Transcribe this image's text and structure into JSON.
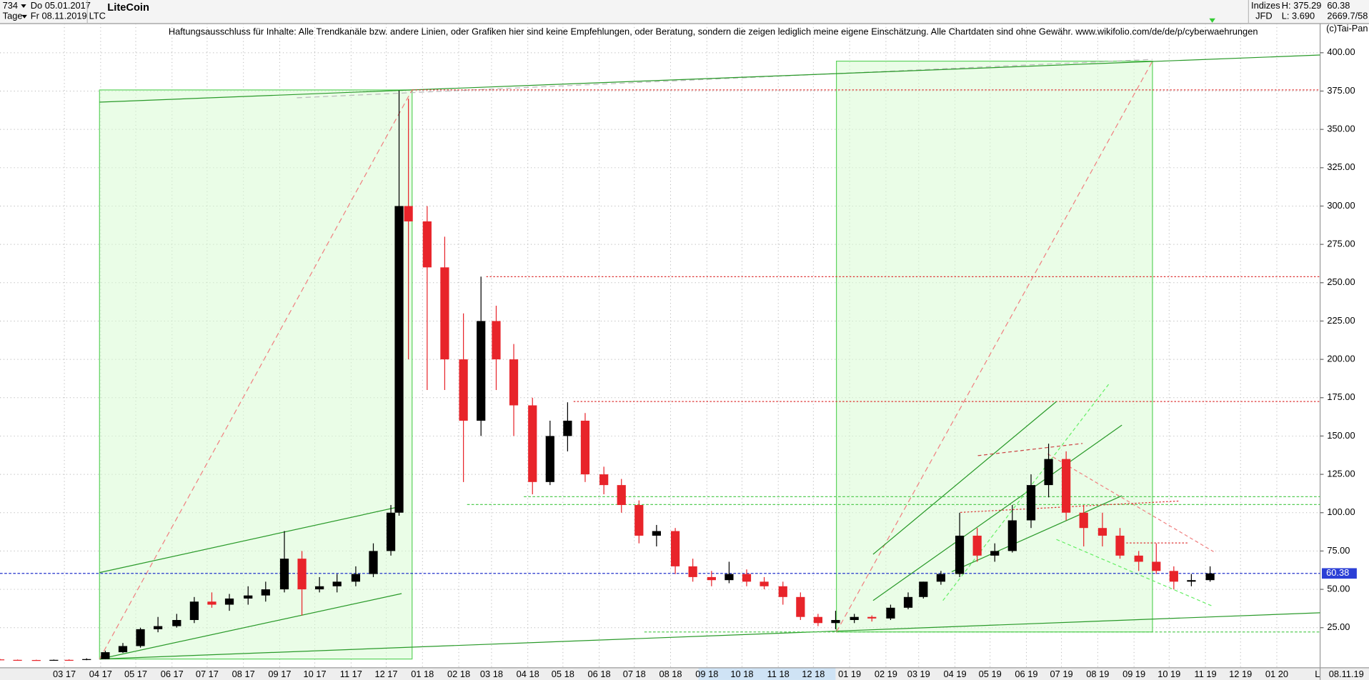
{
  "header": {
    "count": "734",
    "start": "Do 05.01.2017",
    "period": "Tage",
    "end": "Fr 08.11.2019",
    "title": "LiteCoin",
    "symbol": "LTC",
    "disclaimer": "Haftungsausschluss für Inhalte: Alle Trendkanäle bzw. andere Linien, oder Grafiken hier sind keine Empfehlungen, oder Beratung, sondern die zeigen lediglich meine eigene Einschätzung. Alle Chartdaten sind ohne Gewähr.  www.wikifolio.com/de/de/p/cyberwaehrungen",
    "market": "Indizes",
    "exchange": "JFD",
    "high": "H: 375.29",
    "low": "L: 3.690",
    "last": "60.38",
    "volume": "2669.7/58",
    "copyright": "(c)Tai-Pan",
    "scale_mode": "L",
    "end_date": "08.11.19"
  },
  "chart_data": {
    "type": "candlestick",
    "last_price": {
      "value": 60.38,
      "label": "60.38"
    },
    "xlim": [
      "2017-01-05",
      "2020-02-07"
    ],
    "ylim": [
      0,
      419
    ],
    "xticks": [
      {
        "value": "2017-03-01",
        "label": "03 17"
      },
      {
        "value": "2017-04-01",
        "label": "04 17"
      },
      {
        "value": "2017-05-01",
        "label": "05 17"
      },
      {
        "value": "2017-06-01",
        "label": "06 17"
      },
      {
        "value": "2017-07-01",
        "label": "07 17"
      },
      {
        "value": "2017-08-01",
        "label": "08 17"
      },
      {
        "value": "2017-09-01",
        "label": "09 17"
      },
      {
        "value": "2017-10-01",
        "label": "10 17"
      },
      {
        "value": "2017-11-01",
        "label": "11 17"
      },
      {
        "value": "2017-12-01",
        "label": "12 17"
      },
      {
        "value": "2018-01-01",
        "label": "01 18"
      },
      {
        "value": "2018-02-01",
        "label": "02 18"
      },
      {
        "value": "2018-03-01",
        "label": "03 18"
      },
      {
        "value": "2018-04-01",
        "label": "04 18"
      },
      {
        "value": "2018-05-01",
        "label": "05 18"
      },
      {
        "value": "2018-06-01",
        "label": "06 18"
      },
      {
        "value": "2018-07-01",
        "label": "07 18"
      },
      {
        "value": "2018-08-01",
        "label": "08 18"
      },
      {
        "value": "2018-09-01",
        "label": "09 18"
      },
      {
        "value": "2018-10-01",
        "label": "10 18"
      },
      {
        "value": "2018-11-01",
        "label": "11 18"
      },
      {
        "value": "2018-12-01",
        "label": "12 18"
      },
      {
        "value": "2019-01-01",
        "label": "01 19"
      },
      {
        "value": "2019-02-01",
        "label": "02 19"
      },
      {
        "value": "2019-03-01",
        "label": "03 19"
      },
      {
        "value": "2019-04-01",
        "label": "04 19"
      },
      {
        "value": "2019-05-01",
        "label": "05 19"
      },
      {
        "value": "2019-06-01",
        "label": "06 19"
      },
      {
        "value": "2019-07-01",
        "label": "07 19"
      },
      {
        "value": "2019-08-01",
        "label": "08 19"
      },
      {
        "value": "2019-09-01",
        "label": "09 19"
      },
      {
        "value": "2019-10-01",
        "label": "10 19"
      },
      {
        "value": "2019-11-01",
        "label": "11 19"
      },
      {
        "value": "2019-12-01",
        "label": "12 19"
      },
      {
        "value": "2020-01-01",
        "label": "01 20"
      }
    ],
    "yticks": [
      {
        "value": 25,
        "label": "25.00"
      },
      {
        "value": 50,
        "label": "50.00"
      },
      {
        "value": 75,
        "label": "75.00"
      },
      {
        "value": 100,
        "label": "100.00"
      },
      {
        "value": 125,
        "label": "125.00"
      },
      {
        "value": 150,
        "label": "150.00"
      },
      {
        "value": 175,
        "label": "175.00"
      },
      {
        "value": 200,
        "label": "200.00"
      },
      {
        "value": 225,
        "label": "225.00"
      },
      {
        "value": 250,
        "label": "250.00"
      },
      {
        "value": 275,
        "label": "275.00"
      },
      {
        "value": 300,
        "label": "300.00"
      },
      {
        "value": 325,
        "label": "325.00"
      },
      {
        "value": 350,
        "label": "350.00"
      },
      {
        "value": 375,
        "label": "375.00"
      },
      {
        "value": 400,
        "label": "400.00"
      }
    ],
    "up_color": "#000000",
    "down_color": "#e8242a",
    "x": [
      "2017-01-05",
      "2017-01-20",
      "2017-02-05",
      "2017-02-20",
      "2017-03-05",
      "2017-03-20",
      "2017-04-05",
      "2017-04-20",
      "2017-05-05",
      "2017-05-20",
      "2017-06-05",
      "2017-06-20",
      "2017-07-05",
      "2017-07-20",
      "2017-08-05",
      "2017-08-20",
      "2017-09-05",
      "2017-09-20",
      "2017-10-05",
      "2017-10-20",
      "2017-11-05",
      "2017-11-20",
      "2017-12-05",
      "2017-12-12",
      "2017-12-20",
      "2018-01-05",
      "2018-01-20",
      "2018-02-05",
      "2018-02-20",
      "2018-03-05",
      "2018-03-20",
      "2018-04-05",
      "2018-04-20",
      "2018-05-05",
      "2018-05-20",
      "2018-06-05",
      "2018-06-20",
      "2018-07-05",
      "2018-07-20",
      "2018-08-05",
      "2018-08-20",
      "2018-09-05",
      "2018-09-20",
      "2018-10-05",
      "2018-10-20",
      "2018-11-05",
      "2018-11-20",
      "2018-12-05",
      "2018-12-20",
      "2019-01-05",
      "2019-01-20",
      "2019-02-05",
      "2019-02-20",
      "2019-03-05",
      "2019-03-20",
      "2019-04-05",
      "2019-04-20",
      "2019-05-05",
      "2019-05-20",
      "2019-06-05",
      "2019-06-20",
      "2019-07-05",
      "2019-07-20",
      "2019-08-05",
      "2019-08-20",
      "2019-09-05",
      "2019-09-20",
      "2019-10-05",
      "2019-10-20",
      "2019-11-05"
    ],
    "open": [
      4.3,
      4.0,
      3.9,
      3.8,
      4.0,
      3.9,
      4.5,
      9,
      13,
      24,
      26,
      30,
      42,
      40,
      44,
      46,
      50,
      70,
      50,
      52,
      55,
      60,
      75,
      100,
      300,
      290,
      260,
      200,
      160,
      225,
      200,
      170,
      120,
      150,
      160,
      125,
      118,
      105,
      85,
      88,
      65,
      58,
      56,
      60,
      55,
      52,
      45,
      32,
      28,
      30,
      32,
      31,
      38,
      45,
      55,
      60,
      85,
      72,
      75,
      95,
      118,
      135,
      100,
      90,
      85,
      72,
      68,
      62,
      55,
      56
    ],
    "high": [
      4.6,
      4.2,
      4.1,
      4.2,
      4.3,
      5.0,
      10,
      15,
      25,
      32,
      34,
      45,
      48,
      47,
      52,
      55,
      88,
      75,
      58,
      60,
      65,
      80,
      105,
      375.29,
      370,
      300,
      280,
      230,
      254,
      235,
      210,
      175,
      160,
      172,
      165,
      130,
      122,
      108,
      92,
      90,
      70,
      62,
      68,
      63,
      58,
      55,
      48,
      34,
      36,
      34,
      33,
      40,
      48,
      55,
      62,
      100,
      90,
      80,
      105,
      125,
      145,
      140,
      105,
      100,
      90,
      75,
      80,
      65,
      60,
      65
    ],
    "low": [
      3.7,
      3.8,
      3.7,
      3.7,
      3.8,
      3.8,
      4.4,
      8.5,
      12,
      22,
      25,
      28,
      38,
      36,
      40,
      42,
      48,
      33,
      48,
      48,
      52,
      58,
      72,
      98,
      200,
      180,
      180,
      120,
      150,
      180,
      150,
      112,
      118,
      140,
      120,
      112,
      100,
      80,
      78,
      60,
      55,
      52,
      54,
      52,
      50,
      40,
      30,
      26,
      24,
      28,
      29,
      30,
      37,
      44,
      53,
      58,
      68,
      68,
      74,
      90,
      110,
      95,
      78,
      78,
      70,
      62,
      60,
      50,
      52,
      55
    ],
    "close": [
      4.0,
      3.9,
      3.8,
      4.0,
      3.9,
      4.5,
      9,
      13,
      24,
      26,
      30,
      42,
      40,
      44,
      46,
      50,
      70,
      50,
      52,
      55,
      60,
      75,
      100,
      300,
      290,
      260,
      200,
      160,
      225,
      200,
      170,
      120,
      150,
      160,
      125,
      118,
      105,
      85,
      88,
      65,
      58,
      56,
      60,
      55,
      52,
      45,
      32,
      28,
      30,
      32,
      31,
      38,
      45,
      55,
      60,
      85,
      72,
      75,
      95,
      118,
      135,
      100,
      90,
      85,
      72,
      68,
      62,
      55,
      56,
      60.38
    ]
  }
}
